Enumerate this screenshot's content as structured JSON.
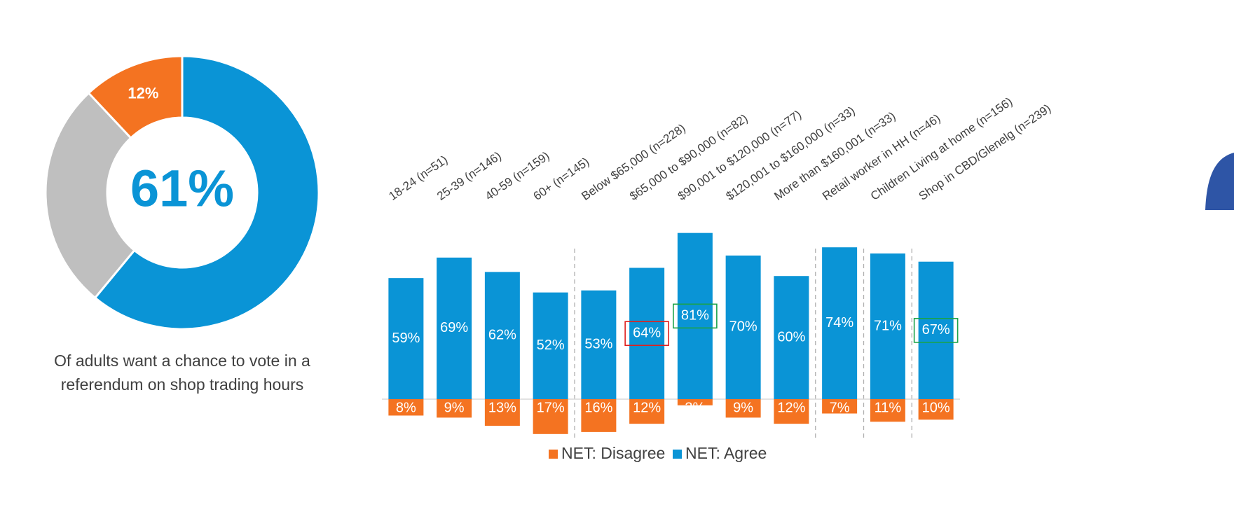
{
  "chart_data": [
    {
      "type": "pie",
      "values": [
        61,
        27,
        12
      ],
      "value_labels": [
        "61%",
        null,
        "12%"
      ],
      "colors": [
        "#0a94d6",
        "#bfbfbf",
        "#f47321"
      ],
      "donut": true,
      "caption": [
        "Of adults want a chance to vote in a",
        "referendum on shop trading hours"
      ]
    },
    {
      "type": "bar",
      "categories": [
        "18-24 (n=51)",
        "25-39 (n=146)",
        "40-59 (n=159)",
        "60+ (n=145)",
        "Below $65,000 (n=228)",
        "$65,000 to $90,000 (n=82)",
        "$90,001 to $120,000 (n=77)",
        "$120,001 to $160,000 (n=33)",
        "More than $160,001 (n=33)",
        "Retail worker in HH (n=46)",
        "Children Living at home (n=156)",
        "Shop in CBD/Glenelg (n=239)"
      ],
      "series": [
        {
          "name": "NET: Disagree",
          "color": "#f47321",
          "values": [
            -8,
            -9,
            -13,
            -17,
            -16,
            -12,
            -3,
            -9,
            -12,
            -7,
            -11,
            -10
          ],
          "value_labels": [
            "8%",
            "9%",
            "13%",
            "17%",
            "16%",
            "12%",
            "3%",
            "9%",
            "12%",
            "7%",
            "11%",
            "10%"
          ]
        },
        {
          "name": "NET: Agree",
          "color": "#0a94d6",
          "values": [
            59,
            69,
            62,
            52,
            53,
            64,
            81,
            70,
            60,
            74,
            71,
            67
          ],
          "value_labels": [
            "59%",
            "69%",
            "62%",
            "52%",
            "53%",
            "64%",
            "81%",
            "70%",
            "60%",
            "74%",
            "71%",
            "67%"
          ]
        }
      ],
      "ylim": [
        -20,
        85
      ],
      "group_breaks": [
        4,
        9,
        10,
        11
      ],
      "highlights": [
        {
          "index": 5,
          "color": "#e0201e"
        },
        {
          "index": 6,
          "color": "#1aa34a"
        },
        {
          "index": 11,
          "color": "#1aa34a"
        }
      ],
      "legend": "bottom"
    }
  ]
}
